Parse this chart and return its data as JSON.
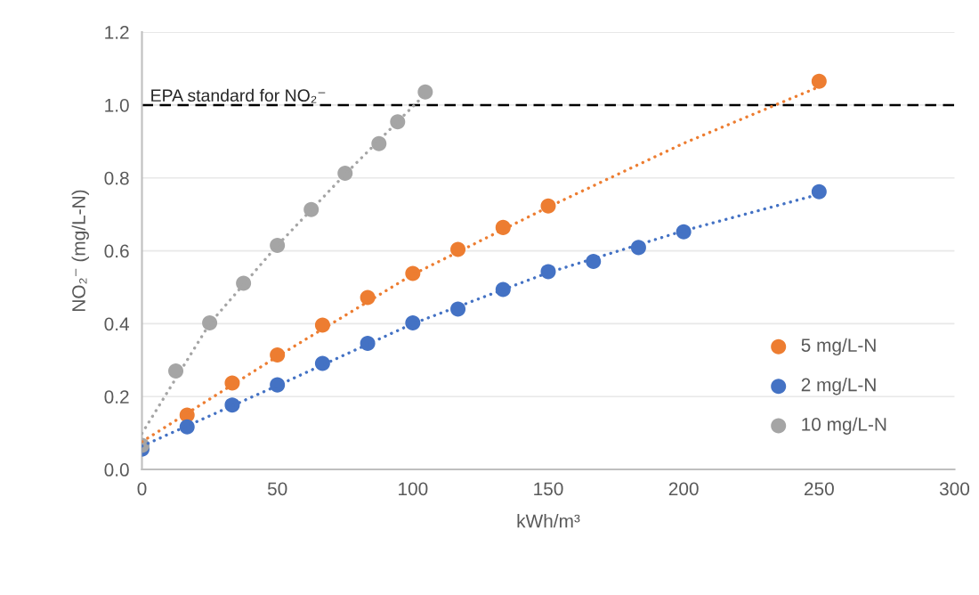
{
  "chart_data": {
    "type": "scatter",
    "xlabel": "kWh/m³",
    "ylabel": "NO₂⁻ (mg/L-N)",
    "xlim": [
      0,
      300
    ],
    "xticks": [
      0,
      50,
      100,
      150,
      200,
      250,
      300
    ],
    "ylim": [
      0,
      1.2
    ],
    "yticks": [
      {
        "value": 0,
        "label": "0.0"
      },
      {
        "value": 0.2,
        "label": "0.2"
      },
      {
        "value": 0.4,
        "label": "0.4"
      },
      {
        "value": 0.6,
        "label": "0.6"
      },
      {
        "value": 0.8,
        "label": "0.8"
      },
      {
        "value": 1.0,
        "label": "1.0"
      },
      {
        "value": 1.2,
        "label": "1.2"
      }
    ],
    "grid": "y",
    "legend": "right",
    "marker": "circle",
    "ref_lines": [
      {
        "axis": "y",
        "value": 1.0,
        "label": "EPA standard for NO₂⁻",
        "color": "#000000",
        "line_style": "dashed"
      }
    ],
    "series": [
      {
        "name": "5 mg/L-N",
        "color": "#ed7d31",
        "x": [
          16.67,
          33.33,
          50,
          66.67,
          83.33,
          100,
          116.67,
          133.33,
          150,
          250
        ],
        "values": [
          0.149,
          0.237,
          0.314,
          0.396,
          0.472,
          0.538,
          0.604,
          0.664,
          0.723,
          1.065
        ]
      },
      {
        "name": "2 mg/L-N",
        "color": "#4472c4",
        "x": [
          0,
          16.67,
          33.33,
          50,
          66.67,
          83.33,
          100,
          116.67,
          133.33,
          150,
          166.67,
          183.33,
          200,
          250
        ],
        "values": [
          0.056,
          0.117,
          0.177,
          0.232,
          0.291,
          0.346,
          0.402,
          0.44,
          0.494,
          0.543,
          0.571,
          0.609,
          0.652,
          0.762
        ]
      },
      {
        "name": "10 mg/L-N",
        "color": "#a5a5a5",
        "x": [
          0,
          12.5,
          25,
          37.5,
          50,
          62.5,
          75,
          87.5,
          94.4,
          104.6
        ],
        "values": [
          0.066,
          0.27,
          0.402,
          0.511,
          0.615,
          0.713,
          0.813,
          0.894,
          0.954,
          1.036
        ]
      },
      {
        "type": "line",
        "color": "#ed7d31",
        "marker": "none",
        "line_style": "dotted",
        "x": [
          0,
          50,
          100,
          150,
          200,
          250
        ],
        "values": [
          0.076,
          0.31,
          0.535,
          0.72,
          0.895,
          1.05
        ]
      },
      {
        "type": "line",
        "color": "#4472c4",
        "marker": "none",
        "line_style": "dotted",
        "x": [
          0,
          50,
          100,
          150,
          200,
          250
        ],
        "values": [
          0.064,
          0.23,
          0.4,
          0.54,
          0.655,
          0.755
        ]
      },
      {
        "type": "line",
        "color": "#a5a5a5",
        "marker": "none",
        "line_style": "dotted",
        "x": [
          0,
          25,
          50,
          75,
          104.6
        ],
        "values": [
          0.099,
          0.4,
          0.615,
          0.81,
          1.03
        ]
      }
    ]
  }
}
